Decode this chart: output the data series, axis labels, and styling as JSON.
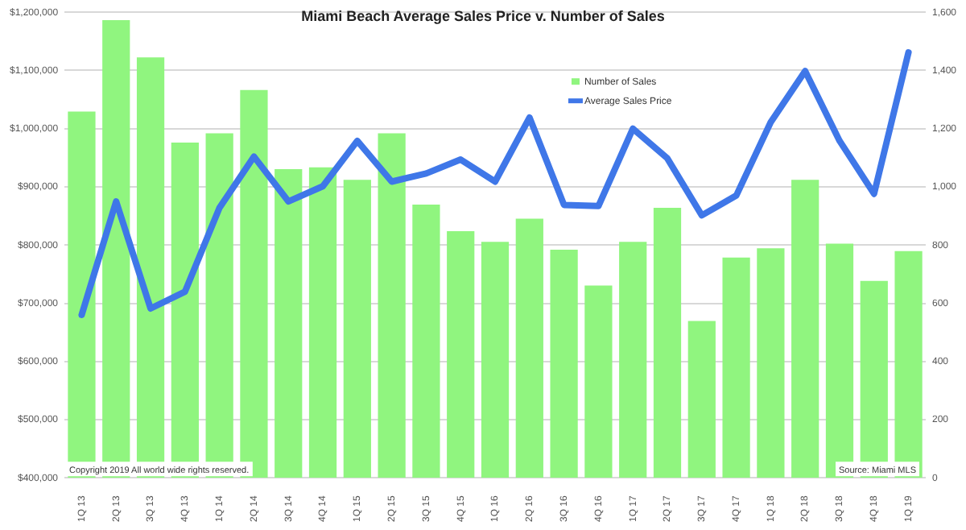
{
  "chart_data": {
    "type": "bar",
    "title": "Miami Beach Average Sales Price v. Number of Sales",
    "categories": [
      "1Q 13",
      "2Q 13",
      "3Q 13",
      "4Q 13",
      "1Q 14",
      "2Q 14",
      "3Q 14",
      "4Q 14",
      "1Q 15",
      "2Q 15",
      "3Q 15",
      "4Q 15",
      "1Q 16",
      "2Q 16",
      "3Q 16",
      "4Q 16",
      "1Q 17",
      "2Q 17",
      "3Q 17",
      "4Q 17",
      "1Q 18",
      "2Q 18",
      "3Q 18",
      "4Q 18",
      "1Q 19"
    ],
    "series": [
      {
        "name": "Number of Sales",
        "axis": "y2",
        "color": "#90f57f",
        "values": [
          1259,
          1573,
          1445,
          1152,
          1184,
          1333,
          1061,
          1067,
          1024,
          1184,
          939,
          848,
          811,
          891,
          784,
          661,
          811,
          928,
          539,
          757,
          789,
          1024,
          805,
          677,
          779
        ]
      },
      {
        "name": "Average Sales Price",
        "type": "line",
        "axis": "y",
        "color": "#3f77e8",
        "values": [
          680000,
          875000,
          691000,
          720000,
          864000,
          952000,
          875000,
          901000,
          979000,
          909000,
          923000,
          947000,
          909000,
          1019000,
          869000,
          867000,
          1000000,
          949000,
          851000,
          885000,
          1011000,
          1099000,
          979000,
          888000,
          1131000
        ]
      }
    ],
    "ylim": [
      400000,
      1200000
    ],
    "yticks": [
      {
        "value": 400000,
        "label": "$400,000"
      },
      {
        "value": 500000,
        "label": "$500,000"
      },
      {
        "value": 600000,
        "label": "$600,000"
      },
      {
        "value": 700000,
        "label": "$700,000"
      },
      {
        "value": 800000,
        "label": "$800,000"
      },
      {
        "value": 900000,
        "label": "$900,000"
      },
      {
        "value": 1000000,
        "label": "$1,000,000"
      },
      {
        "value": 1100000,
        "label": "$1,100,000"
      },
      {
        "value": 1200000,
        "label": "$1,200,000"
      }
    ],
    "y2lim": [
      0,
      1600
    ],
    "y2ticks": [
      0,
      200,
      400,
      600,
      800,
      {
        "value": 1000,
        "label": "1,000"
      },
      {
        "value": 1200,
        "label": "1,200"
      },
      {
        "value": 1400,
        "label": "1,400"
      },
      {
        "value": 1600,
        "label": "1,600"
      }
    ],
    "grid": "y",
    "legend": "top",
    "annotations": [
      "Copyright 2019 All world wide rights reserved.",
      "Source: Miami MLS"
    ]
  }
}
